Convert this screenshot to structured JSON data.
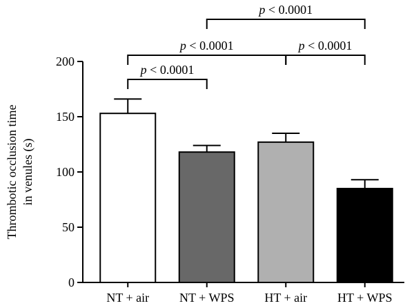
{
  "chart_data": {
    "type": "bar",
    "ylabel_lines": [
      "Thrombotic occlusion time",
      "in venules (s)"
    ],
    "ylim": [
      0,
      200
    ],
    "yticks": [
      0,
      50,
      100,
      150,
      200
    ],
    "categories": [
      "NT + air",
      "NT + WPS",
      "HT + air",
      "HT + WPS"
    ],
    "values": [
      153,
      118,
      127,
      85
    ],
    "errors": [
      13,
      6,
      8,
      8
    ],
    "bar_colors": [
      "#ffffff",
      "#686868",
      "#b0b0b0",
      "#000000"
    ],
    "comparisons": [
      {
        "label_p": "p",
        "label_rest": " < 0.0001",
        "from": 0,
        "to": 1,
        "tier": 1
      },
      {
        "label_p": "p",
        "label_rest": " < 0.0001",
        "from": 0,
        "to": 2,
        "tier": 2
      },
      {
        "label_p": "p",
        "label_rest": " < 0.0001",
        "from": 2,
        "to": 3,
        "tier": 2
      },
      {
        "label_p": "p",
        "label_rest": " < 0.0001",
        "from": 1,
        "to": 3,
        "tier": 3
      }
    ]
  }
}
